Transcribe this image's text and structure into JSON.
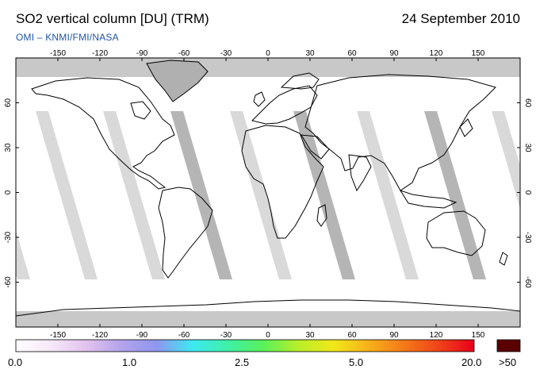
{
  "header": {
    "title": "SO2 vertical column [DU] (TRM)",
    "date": "24 September 2010",
    "subtitle": "OMI  –  KNMI/FMI/NASA"
  },
  "map": {
    "projection": "equirectangular",
    "lon_range": [
      -180,
      180
    ],
    "lat_range": [
      -90,
      90
    ],
    "lon_ticks": [
      "-150",
      "-120",
      "-90",
      "-60",
      "-30",
      "0",
      "30",
      "60",
      "90",
      "120",
      "150"
    ],
    "lat_ticks_left": [
      "60",
      "30",
      "0",
      "-30",
      "-60"
    ],
    "lat_ticks_right": [
      "60",
      "30",
      "0",
      "-30",
      "-60"
    ],
    "colors": {
      "ocean": "#ffffff",
      "missing": "#c8c8c8",
      "gap_light": "#d2d2d2",
      "gap_dark": "#a8a8a8",
      "coast": "#000000"
    }
  },
  "colorbar": {
    "labels": [
      "0.0",
      "1.0",
      "2.5",
      "5.0",
      "20.0"
    ],
    "overflow_label": ">50",
    "overflow_color": "#5a0000",
    "stops": [
      "#ffffff",
      "#f6e8f8",
      "#e2c2ee",
      "#b3a3ea",
      "#8f96ef",
      "#3ee8f2",
      "#3ff0a8",
      "#58f05a",
      "#b8ee2a",
      "#f0e81a",
      "#f7b11a",
      "#f47a18",
      "#f0421a",
      "#e8001a"
    ]
  }
}
